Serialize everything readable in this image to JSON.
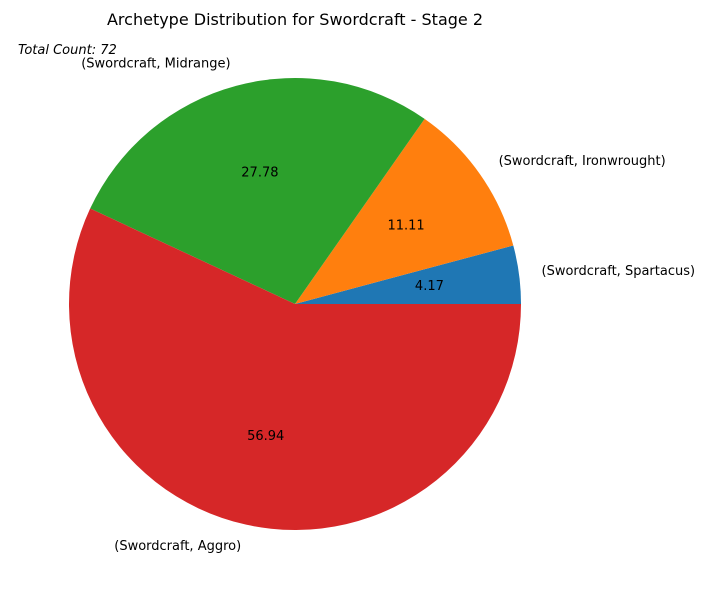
{
  "chart_data": {
    "type": "pie",
    "title": "Archetype Distribution for Swordcraft - Stage 2",
    "annotation": "Total Count: 72",
    "start_angle_deg": 0,
    "direction": "counterclockwise",
    "slices": [
      {
        "label": "(Swordcraft, Spartacus)",
        "value": 4.17,
        "pct_text": "4.17",
        "color": "#1f77b4"
      },
      {
        "label": "(Swordcraft, Ironwrought)",
        "value": 11.11,
        "pct_text": "11.11",
        "color": "#ff7f0e"
      },
      {
        "label": "(Swordcraft, Midrange)",
        "value": 27.78,
        "pct_text": "27.78",
        "color": "#2ca02c"
      },
      {
        "label": "(Swordcraft, Aggro)",
        "value": 56.94,
        "pct_text": "56.94",
        "color": "#d62728"
      }
    ]
  }
}
